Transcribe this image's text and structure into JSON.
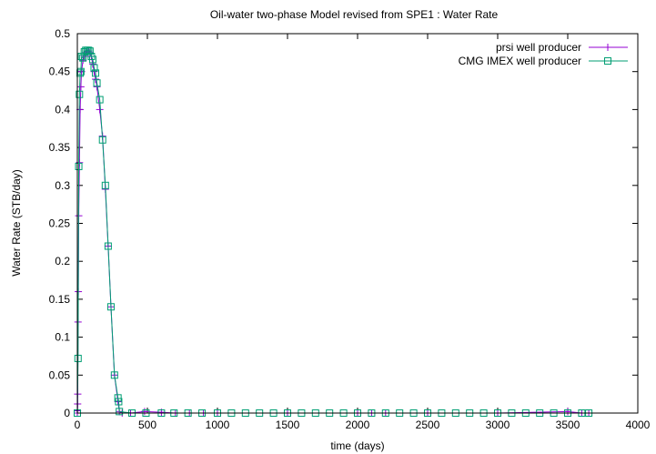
{
  "chart_data": {
    "type": "line",
    "title": "Oil-water two-phase Model revised from SPE1 : Water Rate",
    "xlabel": "time (days)",
    "ylabel": "Water Rate (STB/day)",
    "xlim": [
      0,
      4000
    ],
    "ylim": [
      0,
      0.5
    ],
    "x_ticks": [
      0,
      500,
      1000,
      1500,
      2000,
      2500,
      3000,
      3500,
      4000
    ],
    "y_ticks": [
      0,
      0.05,
      0.1,
      0.15,
      0.2,
      0.25,
      0.3,
      0.35,
      0.4,
      0.45,
      0.5
    ],
    "legend_position": "top-right",
    "grid": false,
    "series": [
      {
        "name": "prsi well producer",
        "color": "#9400d3",
        "marker": "plus",
        "x": [
          0,
          1,
          2,
          3,
          5,
          7,
          10,
          15,
          20,
          25,
          30,
          40,
          50,
          60,
          70,
          80,
          90,
          100,
          110,
          120,
          130,
          140,
          160,
          180,
          200,
          220,
          240,
          265,
          290,
          300,
          320,
          380,
          480,
          600,
          700,
          800,
          900,
          1000,
          1500,
          2000,
          2100,
          2200,
          2500,
          3000,
          3500,
          3600,
          3650
        ],
        "y": [
          0,
          0.003,
          0.012,
          0.025,
          0.12,
          0.16,
          0.26,
          0.33,
          0.4,
          0.43,
          0.45,
          0.465,
          0.47,
          0.475,
          0.477,
          0.477,
          0.475,
          0.47,
          0.46,
          0.45,
          0.44,
          0.43,
          0.4,
          0.365,
          0.295,
          0.22,
          0.14,
          0.05,
          0.015,
          0.002,
          0,
          0,
          0.002,
          0.001,
          0,
          0,
          0,
          0,
          0,
          0,
          0,
          0,
          0,
          0,
          0.002,
          0,
          0
        ]
      },
      {
        "name": "CMG IMEX well producer",
        "color": "#009e73",
        "marker": "square",
        "x": [
          0,
          5,
          10,
          15,
          20,
          25,
          30,
          40,
          50,
          60,
          70,
          80,
          90,
          100,
          110,
          120,
          130,
          140,
          160,
          180,
          200,
          220,
          240,
          265,
          290,
          295,
          300,
          390,
          490,
          600,
          690,
          790,
          890,
          1000,
          1100,
          1200,
          1300,
          1400,
          1500,
          1600,
          1700,
          1800,
          1900,
          2000,
          2100,
          2200,
          2300,
          2400,
          2500,
          2600,
          2700,
          2800,
          2900,
          3000,
          3100,
          3200,
          3300,
          3400,
          3500,
          3600,
          3650
        ],
        "y": [
          0,
          0.072,
          0.325,
          0.42,
          0.448,
          0.45,
          0.47,
          0.468,
          0.476,
          0.478,
          0.478,
          0.478,
          0.477,
          0.47,
          0.466,
          0.455,
          0.448,
          0.435,
          0.413,
          0.36,
          0.3,
          0.22,
          0.14,
          0.05,
          0.02,
          0.015,
          0.002,
          0,
          0,
          0,
          0,
          0,
          0,
          0,
          0,
          0,
          0,
          0,
          0,
          0,
          0,
          0,
          0,
          0,
          0,
          0,
          0,
          0,
          0,
          0,
          0,
          0,
          0,
          0,
          0,
          0,
          0,
          0,
          0,
          0,
          0
        ]
      }
    ]
  }
}
